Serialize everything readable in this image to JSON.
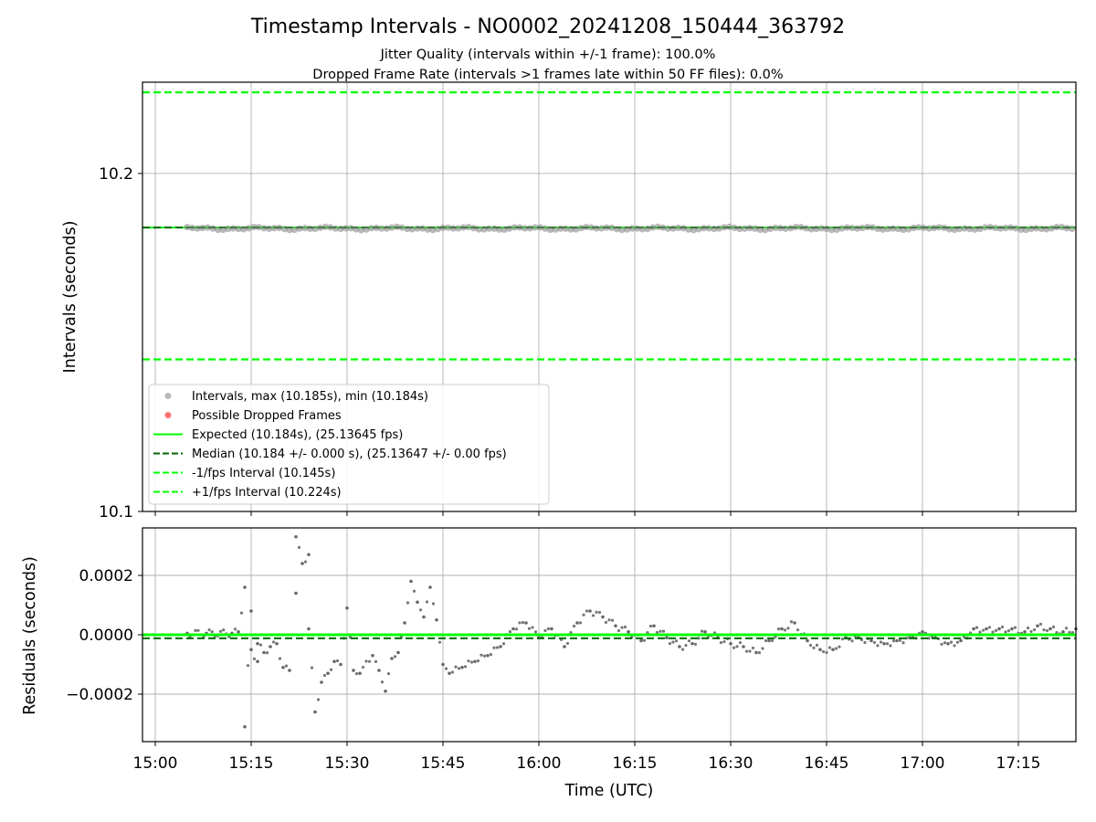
{
  "figure": {
    "title": "Timestamp Intervals - NO0002_20241208_150444_363792",
    "subtitle_line1": "Jitter Quality (intervals within +/-1 frame): 100.0%",
    "subtitle_line2": "Dropped Frame Rate (intervals >1 frames late within 50 FF files): 0.0%"
  },
  "colors": {
    "intervals": "#808080",
    "dropped": "#ff0000",
    "expected": "#00ff00",
    "median": "#006400",
    "bounds": "#00ff00",
    "grid": "#b0b0b0"
  },
  "chart_data": [
    {
      "type": "scatter",
      "panel": "top",
      "ylabel": "Intervals (seconds)",
      "xlabel": "",
      "xlim": [
        "14:58",
        "17:24"
      ],
      "ylim": [
        10.1,
        10.227
      ],
      "yticks": [
        "10.1",
        "10.2"
      ],
      "ytick_values": [
        10.1,
        10.2
      ],
      "grid": true,
      "legend_position": "lower-left",
      "legend": [
        "Intervals, max (10.185s), min (10.184s)",
        "Possible Dropped Frames",
        "Expected (10.184s), (25.13645 fps)",
        "Median (10.184 +/- 0.000 s), (25.13647 +/- 0.00 fps)",
        "-1/fps Interval (10.145s)",
        "+1/fps Interval (10.224s)"
      ],
      "series": [
        {
          "name": "Intervals, max (10.185s), min (10.184s)",
          "x_range": [
            "15:05",
            "17:24"
          ],
          "y_range": [
            10.184,
            10.185
          ]
        },
        {
          "name": "Possible Dropped Frames",
          "x": [],
          "y": []
        }
      ],
      "hlines": [
        {
          "name": "Expected (10.184s), (25.13645 fps)",
          "y": 10.184
        },
        {
          "name": "Median (10.184 +/- 0.000 s), (25.13647 +/- 0.00 fps)",
          "y": 10.184
        },
        {
          "name": "-1/fps Interval (10.145s)",
          "y": 10.145
        },
        {
          "name": "+1/fps Interval (10.224s)",
          "y": 10.224
        }
      ]
    },
    {
      "type": "scatter",
      "panel": "bottom",
      "xlabel": "Time (UTC)",
      "ylabel": "Residuals (seconds)",
      "xlim": [
        "14:58",
        "17:24"
      ],
      "ylim": [
        -0.00036,
        0.00036
      ],
      "xticks": [
        "15:00",
        "15:15",
        "15:30",
        "15:45",
        "16:00",
        "16:15",
        "16:30",
        "16:45",
        "17:00",
        "17:15"
      ],
      "yticks": [
        "−0.0002",
        "0.0000",
        "0.0002"
      ],
      "ytick_values": [
        -0.0002,
        0.0,
        0.0002
      ],
      "grid": true,
      "series": [
        {
          "name": "Residuals",
          "x": [
            "15:05",
            "15:08",
            "15:12",
            "15:13",
            "15:14",
            "15:14",
            "15:15",
            "15:15",
            "15:16",
            "15:16",
            "15:17",
            "15:18",
            "15:19",
            "15:20",
            "15:21",
            "15:22",
            "15:22",
            "15:23",
            "15:24",
            "15:24",
            "15:25",
            "15:26",
            "15:27",
            "15:28",
            "15:29",
            "15:30",
            "15:31",
            "15:32",
            "15:34",
            "15:35",
            "15:36",
            "15:37",
            "15:38",
            "15:39",
            "15:40",
            "15:41",
            "15:42",
            "15:43",
            "15:44",
            "15:45",
            "15:46",
            "15:48",
            "15:50",
            "15:52",
            "15:54",
            "15:56",
            "15:58",
            "16:00",
            "16:02",
            "16:04",
            "16:06",
            "16:08",
            "16:10",
            "16:12",
            "16:14",
            "16:16",
            "16:18",
            "16:20",
            "16:22",
            "16:24",
            "16:26",
            "16:28",
            "16:30",
            "16:32",
            "16:34",
            "16:36",
            "16:38",
            "16:40",
            "16:42",
            "16:44",
            "16:46",
            "16:48",
            "16:50",
            "16:52",
            "16:54",
            "16:56",
            "16:58",
            "17:00",
            "17:02",
            "17:04",
            "17:06",
            "17:08",
            "17:10",
            "17:12",
            "17:14",
            "17:16",
            "17:18",
            "17:20",
            "17:22",
            "17:24"
          ],
          "y": [
            5e-06,
            5e-06,
            5e-06,
            1e-05,
            0.00016,
            -0.00031,
            8e-05,
            -5e-05,
            -9e-05,
            -3e-05,
            -6e-05,
            -4e-05,
            -3e-05,
            -0.00011,
            -0.00012,
            0.00014,
            0.00033,
            0.00024,
            0.00027,
            2e-05,
            -0.00026,
            -0.00016,
            -0.00013,
            -9e-05,
            -0.0001,
            9e-05,
            -0.00012,
            -0.00013,
            -7e-05,
            -0.00012,
            -0.00019,
            -8e-05,
            -6e-05,
            4e-05,
            0.00018,
            0.00011,
            6e-05,
            0.00016,
            5e-05,
            -0.0001,
            -0.00013,
            -0.00011,
            -9e-05,
            -7e-05,
            -4e-05,
            2e-05,
            4e-05,
            -1e-05,
            2e-05,
            -4e-05,
            4e-05,
            8e-05,
            6e-05,
            3e-05,
            1e-05,
            -2e-05,
            3e-05,
            -1e-05,
            -4e-05,
            -3e-05,
            1e-05,
            -1e-05,
            -3e-05,
            -4e-05,
            -6e-05,
            -2e-05,
            2e-05,
            4e-05,
            -2e-05,
            -5e-05,
            -5e-05,
            -1e-05,
            -1e-05,
            -2e-05,
            -3e-05,
            -2e-05,
            -1e-05,
            1e-05,
            -1e-05,
            -3e-05,
            -2e-05,
            2e-05,
            2e-05,
            2e-05,
            2e-05,
            1e-05,
            3e-05,
            2e-05,
            1e-05,
            2e-05
          ]
        }
      ],
      "hlines": [
        {
          "name": "Expected",
          "y": 0.0
        },
        {
          "name": "Median",
          "y": -1.2e-05
        }
      ]
    }
  ]
}
